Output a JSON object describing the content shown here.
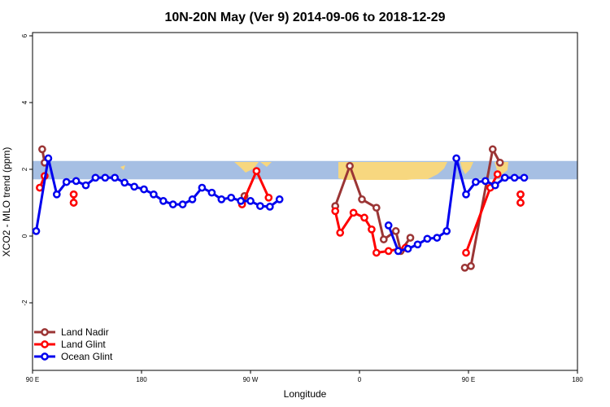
{
  "chart_data": {
    "type": "line",
    "title": "10N-20N May (Ver 9)   2014-09-06 to 2018-12-29",
    "xlabel": "Longitude",
    "ylabel": "XCO2 - MLO trend (ppm)",
    "xlim": [
      90,
      450
    ],
    "ylim": [
      -4,
      6
    ],
    "x_ticks": [
      {
        "value": 90,
        "label": "90 E"
      },
      {
        "value": 180,
        "label": "180"
      },
      {
        "value": 270,
        "label": "90 W"
      },
      {
        "value": 360,
        "label": "0"
      },
      {
        "value": 450,
        "label": "90 E"
      },
      {
        "value": 540,
        "label": "180"
      }
    ],
    "y_ticks": [
      -2,
      0,
      2,
      4,
      6
    ],
    "y_tick_labels": [
      "-2",
      "0",
      "2",
      "4",
      "6"
    ],
    "band": {
      "y_range": [
        1.7,
        2.25
      ],
      "fill": "#a6bfe3",
      "land_fill": "#f7d77f"
    },
    "legend_position": "bottom-left",
    "series": [
      {
        "name": "Land Nadir",
        "color": "#9b3535",
        "segments": [
          [
            [
              98,
              2.6
            ],
            [
              100,
              2.2
            ]
          ],
          [
            [
              124,
              1.0
            ],
            [
              124,
              1.25
            ]
          ],
          [
            [
              263,
              1.0
            ],
            [
              265,
              1.2
            ]
          ],
          [
            [
              340,
              0.9
            ],
            [
              352,
              2.1
            ],
            [
              362,
              1.1
            ],
            [
              374,
              0.85
            ],
            [
              380,
              -0.1
            ],
            [
              390,
              0.15
            ],
            [
              394,
              -0.45
            ],
            [
              402,
              -0.05
            ]
          ],
          [
            [
              447,
              -0.95
            ],
            [
              452,
              -0.9
            ],
            [
              470,
              2.6
            ],
            [
              476,
              2.2
            ]
          ],
          [
            [
              493,
              1.0
            ],
            [
              493,
              1.25
            ]
          ]
        ]
      },
      {
        "name": "Land Glint",
        "color": "#ff0000",
        "segments": [
          [
            [
              96,
              1.45
            ],
            [
              100,
              1.8
            ]
          ],
          [
            [
              124,
              1.25
            ],
            [
              124,
              1.0
            ]
          ],
          [
            [
              263,
              0.95
            ],
            [
              275,
              1.95
            ],
            [
              285,
              1.15
            ]
          ],
          [
            [
              340,
              0.75
            ],
            [
              344,
              0.1
            ],
            [
              355,
              0.7
            ],
            [
              364,
              0.55
            ],
            [
              370,
              0.2
            ],
            [
              374,
              -0.5
            ],
            [
              384,
              -0.45
            ],
            [
              398,
              -0.35
            ]
          ],
          [
            [
              448,
              -0.5
            ],
            [
              468,
              1.45
            ],
            [
              474,
              1.85
            ]
          ],
          [
            [
              493,
              1.25
            ],
            [
              493,
              1.0
            ]
          ]
        ]
      },
      {
        "name": "Ocean Glint",
        "color": "#0000ee",
        "segments": [
          [
            [
              93,
              0.15
            ],
            [
              103,
              2.33
            ],
            [
              110,
              1.25
            ],
            [
              118,
              1.62
            ],
            [
              126,
              1.65
            ],
            [
              134,
              1.52
            ],
            [
              142,
              1.75
            ],
            [
              150,
              1.75
            ],
            [
              158,
              1.75
            ],
            [
              166,
              1.6
            ],
            [
              174,
              1.48
            ],
            [
              182,
              1.4
            ],
            [
              190,
              1.25
            ],
            [
              198,
              1.05
            ],
            [
              206,
              0.95
            ],
            [
              214,
              0.95
            ],
            [
              222,
              1.1
            ],
            [
              230,
              1.45
            ],
            [
              238,
              1.3
            ],
            [
              246,
              1.1
            ],
            [
              254,
              1.15
            ],
            [
              262,
              1.05
            ],
            [
              270,
              1.05
            ],
            [
              278,
              0.9
            ],
            [
              286,
              0.88
            ],
            [
              294,
              1.1
            ]
          ],
          [
            [
              384,
              0.32
            ],
            [
              392,
              -0.45
            ],
            [
              400,
              -0.38
            ],
            [
              408,
              -0.25
            ],
            [
              416,
              -0.08
            ],
            [
              424,
              -0.05
            ],
            [
              432,
              0.15
            ],
            [
              440,
              2.33
            ],
            [
              448,
              1.25
            ],
            [
              456,
              1.62
            ],
            [
              464,
              1.65
            ],
            [
              472,
              1.52
            ],
            [
              480,
              1.75
            ],
            [
              488,
              1.75
            ],
            [
              496,
              1.75
            ]
          ]
        ]
      }
    ]
  }
}
